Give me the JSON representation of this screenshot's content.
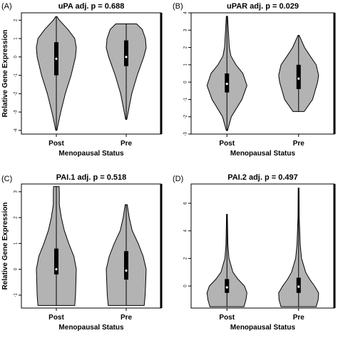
{
  "chart_data": [
    {
      "panel": "(A)",
      "type": "violin",
      "title": "uPA adj. p = 0.688",
      "xlabel": "Menopausal Status",
      "ylabel": "Relative Gene Expression",
      "categories": [
        "Post",
        "Pre"
      ],
      "yticks": [
        -4,
        -3,
        -2,
        -1,
        0,
        1,
        2
      ],
      "ylim": [
        -4.2,
        2.4
      ],
      "violins": [
        {
          "category": "Post",
          "min": -4.0,
          "q1": -1.0,
          "median": -0.1,
          "q3": 0.8,
          "max": 2.2,
          "profile": [
            [
              -4.0,
              0.03
            ],
            [
              -3.5,
              0.12
            ],
            [
              -3.0,
              0.22
            ],
            [
              -2.0,
              0.45
            ],
            [
              -1.0,
              0.74
            ],
            [
              0.0,
              0.96
            ],
            [
              0.5,
              1.0
            ],
            [
              1.0,
              0.92
            ],
            [
              1.5,
              0.58
            ],
            [
              2.0,
              0.15
            ],
            [
              2.2,
              0.03
            ]
          ]
        },
        {
          "category": "Pre",
          "min": -3.4,
          "q1": -0.5,
          "median": 0.0,
          "q3": 0.9,
          "max": 1.8,
          "profile": [
            [
              -3.4,
              0.03
            ],
            [
              -3.0,
              0.1
            ],
            [
              -2.0,
              0.28
            ],
            [
              -1.0,
              0.55
            ],
            [
              0.0,
              0.88
            ],
            [
              0.5,
              1.0
            ],
            [
              1.0,
              0.96
            ],
            [
              1.5,
              0.8
            ],
            [
              1.8,
              0.52
            ]
          ]
        }
      ]
    },
    {
      "panel": "(B)",
      "type": "violin",
      "title": "uPAR adj. p = 0.029",
      "xlabel": "Menopausal Status",
      "ylabel": "",
      "categories": [
        "Post",
        "Pre"
      ],
      "yticks": [
        -3,
        -2,
        -1,
        0,
        1,
        2,
        3,
        4
      ],
      "ylim": [
        -3.0,
        4.0
      ],
      "violins": [
        {
          "category": "Post",
          "min": -2.8,
          "q1": -0.6,
          "median": -0.1,
          "q3": 0.5,
          "max": 3.8,
          "profile": [
            [
              -2.8,
              0.03
            ],
            [
              -2.0,
              0.22
            ],
            [
              -1.0,
              0.75
            ],
            [
              -0.2,
              1.0
            ],
            [
              0.5,
              0.8
            ],
            [
              1.0,
              0.45
            ],
            [
              1.5,
              0.2
            ],
            [
              2.0,
              0.12
            ],
            [
              3.0,
              0.07
            ],
            [
              3.8,
              0.03
            ]
          ]
        },
        {
          "category": "Pre",
          "min": -1.7,
          "q1": -0.4,
          "median": 0.2,
          "q3": 1.0,
          "max": 2.7,
          "profile": [
            [
              -1.7,
              0.28
            ],
            [
              -1.0,
              0.7
            ],
            [
              0.0,
              0.95
            ],
            [
              0.4,
              1.0
            ],
            [
              1.0,
              0.88
            ],
            [
              1.5,
              0.58
            ],
            [
              2.0,
              0.3
            ],
            [
              2.7,
              0.03
            ]
          ]
        }
      ]
    },
    {
      "panel": "(C)",
      "type": "violin",
      "title": "PAI.1 adj. p = 0.518",
      "xlabel": "Menopausal Status",
      "ylabel": "Relative Gene Expression",
      "categories": [
        "Post",
        "Pre"
      ],
      "yticks": [
        -1,
        0,
        1,
        2,
        3
      ],
      "ylim": [
        -1.5,
        3.3
      ],
      "violins": [
        {
          "category": "Post",
          "min": -1.4,
          "q1": -0.2,
          "median": 0.0,
          "q3": 0.8,
          "max": 3.2,
          "profile": [
            [
              -1.4,
              0.92
            ],
            [
              -1.0,
              0.96
            ],
            [
              0.0,
              1.0
            ],
            [
              0.5,
              0.88
            ],
            [
              1.0,
              0.62
            ],
            [
              1.5,
              0.4
            ],
            [
              2.0,
              0.25
            ],
            [
              2.5,
              0.15
            ],
            [
              3.0,
              0.15
            ],
            [
              3.2,
              0.14
            ]
          ]
        },
        {
          "category": "Pre",
          "min": -1.4,
          "q1": -0.4,
          "median": -0.05,
          "q3": 0.7,
          "max": 2.5,
          "profile": [
            [
              -1.4,
              0.9
            ],
            [
              -1.0,
              0.95
            ],
            [
              0.0,
              1.0
            ],
            [
              0.5,
              0.85
            ],
            [
              1.0,
              0.6
            ],
            [
              1.5,
              0.3
            ],
            [
              2.0,
              0.15
            ],
            [
              2.5,
              0.05
            ]
          ]
        }
      ]
    },
    {
      "panel": "(D)",
      "type": "violin",
      "title": "PAI.2 adj. p = 0.497",
      "xlabel": "Menopausal Status",
      "ylabel": "",
      "categories": [
        "Post",
        "Pre"
      ],
      "yticks": [
        0,
        2,
        4,
        6
      ],
      "ylim": [
        -1.6,
        7.4
      ],
      "violins": [
        {
          "category": "Post",
          "min": -1.5,
          "q1": -0.5,
          "median": -0.1,
          "q3": 0.5,
          "max": 5.2,
          "profile": [
            [
              -1.5,
              0.85
            ],
            [
              -1.0,
              0.95
            ],
            [
              -0.5,
              1.0
            ],
            [
              0.0,
              0.88
            ],
            [
              0.5,
              0.55
            ],
            [
              1.0,
              0.3
            ],
            [
              1.5,
              0.2
            ],
            [
              2.0,
              0.1
            ],
            [
              3.0,
              0.05
            ],
            [
              5.2,
              0.02
            ]
          ]
        },
        {
          "category": "Pre",
          "min": -1.5,
          "q1": -0.5,
          "median": -0.05,
          "q3": 0.6,
          "max": 7.1,
          "profile": [
            [
              -1.5,
              0.88
            ],
            [
              -1.0,
              0.98
            ],
            [
              -0.5,
              1.0
            ],
            [
              0.0,
              0.8
            ],
            [
              0.5,
              0.55
            ],
            [
              1.0,
              0.35
            ],
            [
              2.0,
              0.15
            ],
            [
              3.0,
              0.08
            ],
            [
              5.0,
              0.03
            ],
            [
              7.1,
              0.02
            ]
          ]
        }
      ]
    }
  ]
}
